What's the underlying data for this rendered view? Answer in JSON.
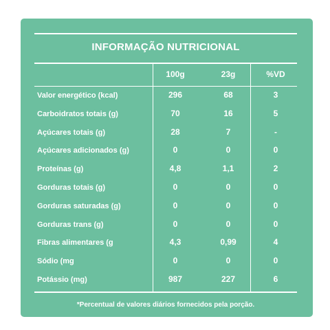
{
  "title": "INFORMAÇÃO NUTRICIONAL",
  "columns": [
    "100g",
    "23g",
    "%VD"
  ],
  "rows": [
    {
      "label": "Valor energético (kcal)",
      "c1": "296",
      "c2": "68",
      "c3": "3"
    },
    {
      "label": "Carboidratos totais (g)",
      "c1": "70",
      "c2": "16",
      "c3": "5"
    },
    {
      "label": "Açúcares totais (g)",
      "c1": "28",
      "c2": "7",
      "c3": "-"
    },
    {
      "label": "Açúcares adicionados (g)",
      "c1": "0",
      "c2": "0",
      "c3": "0"
    },
    {
      "label": "Proteínas (g)",
      "c1": "4,8",
      "c2": "1,1",
      "c3": "2"
    },
    {
      "label": "Gorduras totais (g)",
      "c1": "0",
      "c2": "0",
      "c3": "0"
    },
    {
      "label": "Gorduras saturadas (g)",
      "c1": "0",
      "c2": "0",
      "c3": "0"
    },
    {
      "label": "Gorduras trans (g)",
      "c1": "0",
      "c2": "0",
      "c3": "0"
    },
    {
      "label": "Fibras alimentares (g",
      "c1": "4,3",
      "c2": "0,99",
      "c3": "4"
    },
    {
      "label": "Sódio (mg",
      "c1": "0",
      "c2": "0",
      "c3": "0"
    },
    {
      "label": "Potássio (mg)",
      "c1": "987",
      "c2": "227",
      "c3": "6"
    }
  ],
  "footnote": "*Percentual de valores diários fornecidos pela porção.",
  "colors": {
    "background": "#6cbf9f",
    "text": "#ffffff"
  }
}
